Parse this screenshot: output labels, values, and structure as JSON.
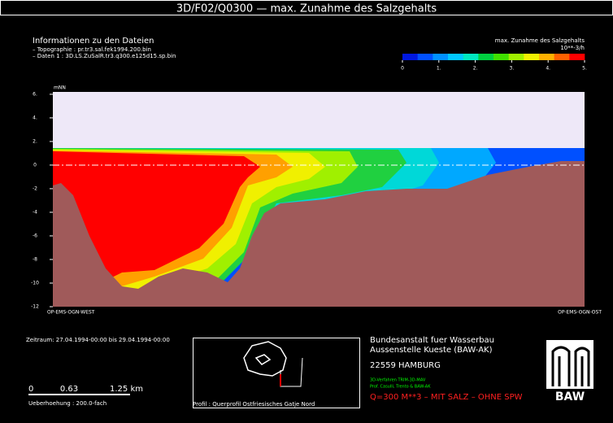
{
  "chart_data": {
    "type": "section",
    "title": "3D/F02/Q0300 — max. Zunahme des Salzgehalts",
    "info_title": "Informationen zu den Dateien",
    "info_lines": [
      "– Topographie : pr.tr3.sal.fek1994.200.bin",
      "– Daten 1 : 3D.LS.ZuSalR.tr3.q300.e125d15.sp.bin"
    ],
    "colorbar": {
      "title": "max. Zunahme des Salzgehalts",
      "unit": "10**-3/h",
      "lim": [
        0,
        5
      ],
      "colors": [
        "#0018e0",
        "#0050ff",
        "#0090ff",
        "#00c8ff",
        "#00e8c0",
        "#00d040",
        "#40e000",
        "#a0f000",
        "#f0f000",
        "#ffb000",
        "#ff6000",
        "#ff0000"
      ],
      "ticks": [
        0,
        {
          "value": 1,
          "label": "1."
        },
        {
          "value": 2,
          "label": "2."
        },
        {
          "value": 3,
          "label": "3."
        },
        {
          "value": 4,
          "label": "4."
        },
        {
          "value": 5,
          "label": "5."
        }
      ]
    },
    "y_label": "mNN",
    "ylim": [
      -12,
      6.2
    ],
    "yticks": [
      {
        "value": 6,
        "label": "6."
      },
      {
        "value": 4,
        "label": "4."
      },
      {
        "value": 2,
        "label": "2."
      },
      0,
      -2,
      -4,
      -6,
      -8,
      -10,
      -12
    ],
    "x_start_label": "OP-EMS-OGN-WEST",
    "x_end_label": "OP-EMS-OGN-OST",
    "period": "Zeitraum: 27.04.1994-00:00 bis 29.04.1994-00:00",
    "scale_labels": [
      "0",
      "0.63",
      "1.25 km"
    ],
    "exaggeration": "Ueberhoehung :   200.0-fach",
    "profile": "Profil : Querprofil Ostfriesisches Gatje Nord",
    "institute": [
      "Bundesanstalt fuer Wasserbau",
      "Aussenstelle Kueste (BAW-AK)",
      "22559 HAMBURG"
    ],
    "method": [
      "3D-Verfahren TRIM-3D-MAV",
      "Prof. Casulli, Trento & BAW-AK"
    ],
    "scenario": "Q=300 M**3 – MIT SALZ – OHNE SPW",
    "logo": "BAW"
  }
}
